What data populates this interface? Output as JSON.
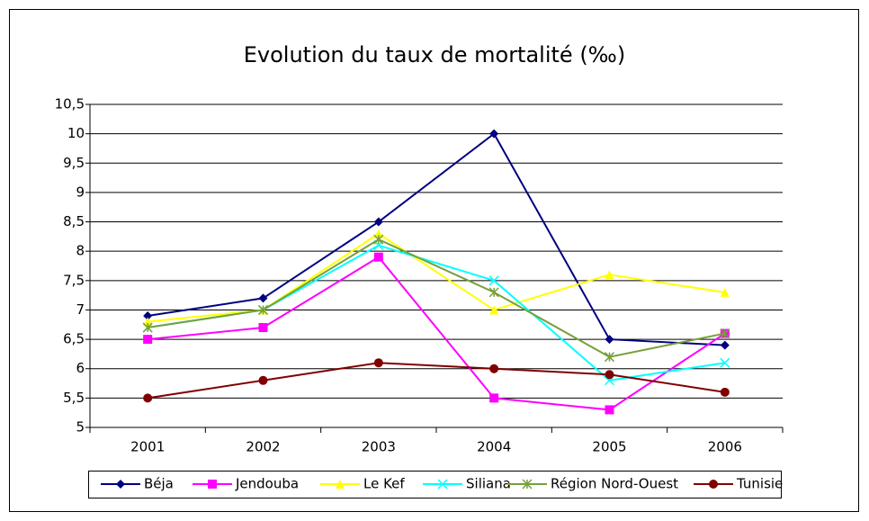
{
  "chart_data": {
    "type": "line",
    "title": "Evolution du taux de mortalité (‰)",
    "categories": [
      "2001",
      "2002",
      "2003",
      "2004",
      "2005",
      "2006"
    ],
    "series": [
      {
        "name": "Béja",
        "color": "#000080",
        "marker": "diamond",
        "values": [
          6.9,
          7.2,
          8.5,
          10,
          6.5,
          6.4
        ]
      },
      {
        "name": "Jendouba",
        "color": "#ff00ff",
        "marker": "square",
        "values": [
          6.5,
          6.7,
          7.9,
          5.5,
          5.3,
          6.6
        ]
      },
      {
        "name": "Le Kef",
        "color": "#ffff00",
        "marker": "triangle",
        "values": [
          6.8,
          7.0,
          8.3,
          7.0,
          7.6,
          7.3
        ]
      },
      {
        "name": "Siliana",
        "color": "#00ffff",
        "marker": "x",
        "values": [
          6.7,
          7.0,
          8.1,
          7.5,
          5.8,
          6.1
        ]
      },
      {
        "name": "Région Nord-Ouest",
        "color": "#77a03a",
        "marker": "star",
        "values": [
          6.7,
          7.0,
          8.2,
          7.3,
          6.2,
          6.6
        ]
      },
      {
        "name": "Tunisie",
        "color": "#800000",
        "marker": "circle",
        "values": [
          5.5,
          5.8,
          6.1,
          6.0,
          5.9,
          5.6
        ]
      }
    ],
    "ylim": [
      5,
      10.5
    ],
    "yticks": [
      5,
      {
        "value": 5.5,
        "label": "5,5"
      },
      6,
      {
        "value": 6.5,
        "label": "6,5"
      },
      7,
      {
        "value": 7.5,
        "label": "7,5"
      },
      8,
      {
        "value": 8.5,
        "label": "8,5"
      },
      9,
      {
        "value": 9.5,
        "label": "9,5"
      },
      10,
      {
        "value": 10.5,
        "label": "10,5"
      }
    ],
    "grid": true,
    "legend": "bottom"
  }
}
